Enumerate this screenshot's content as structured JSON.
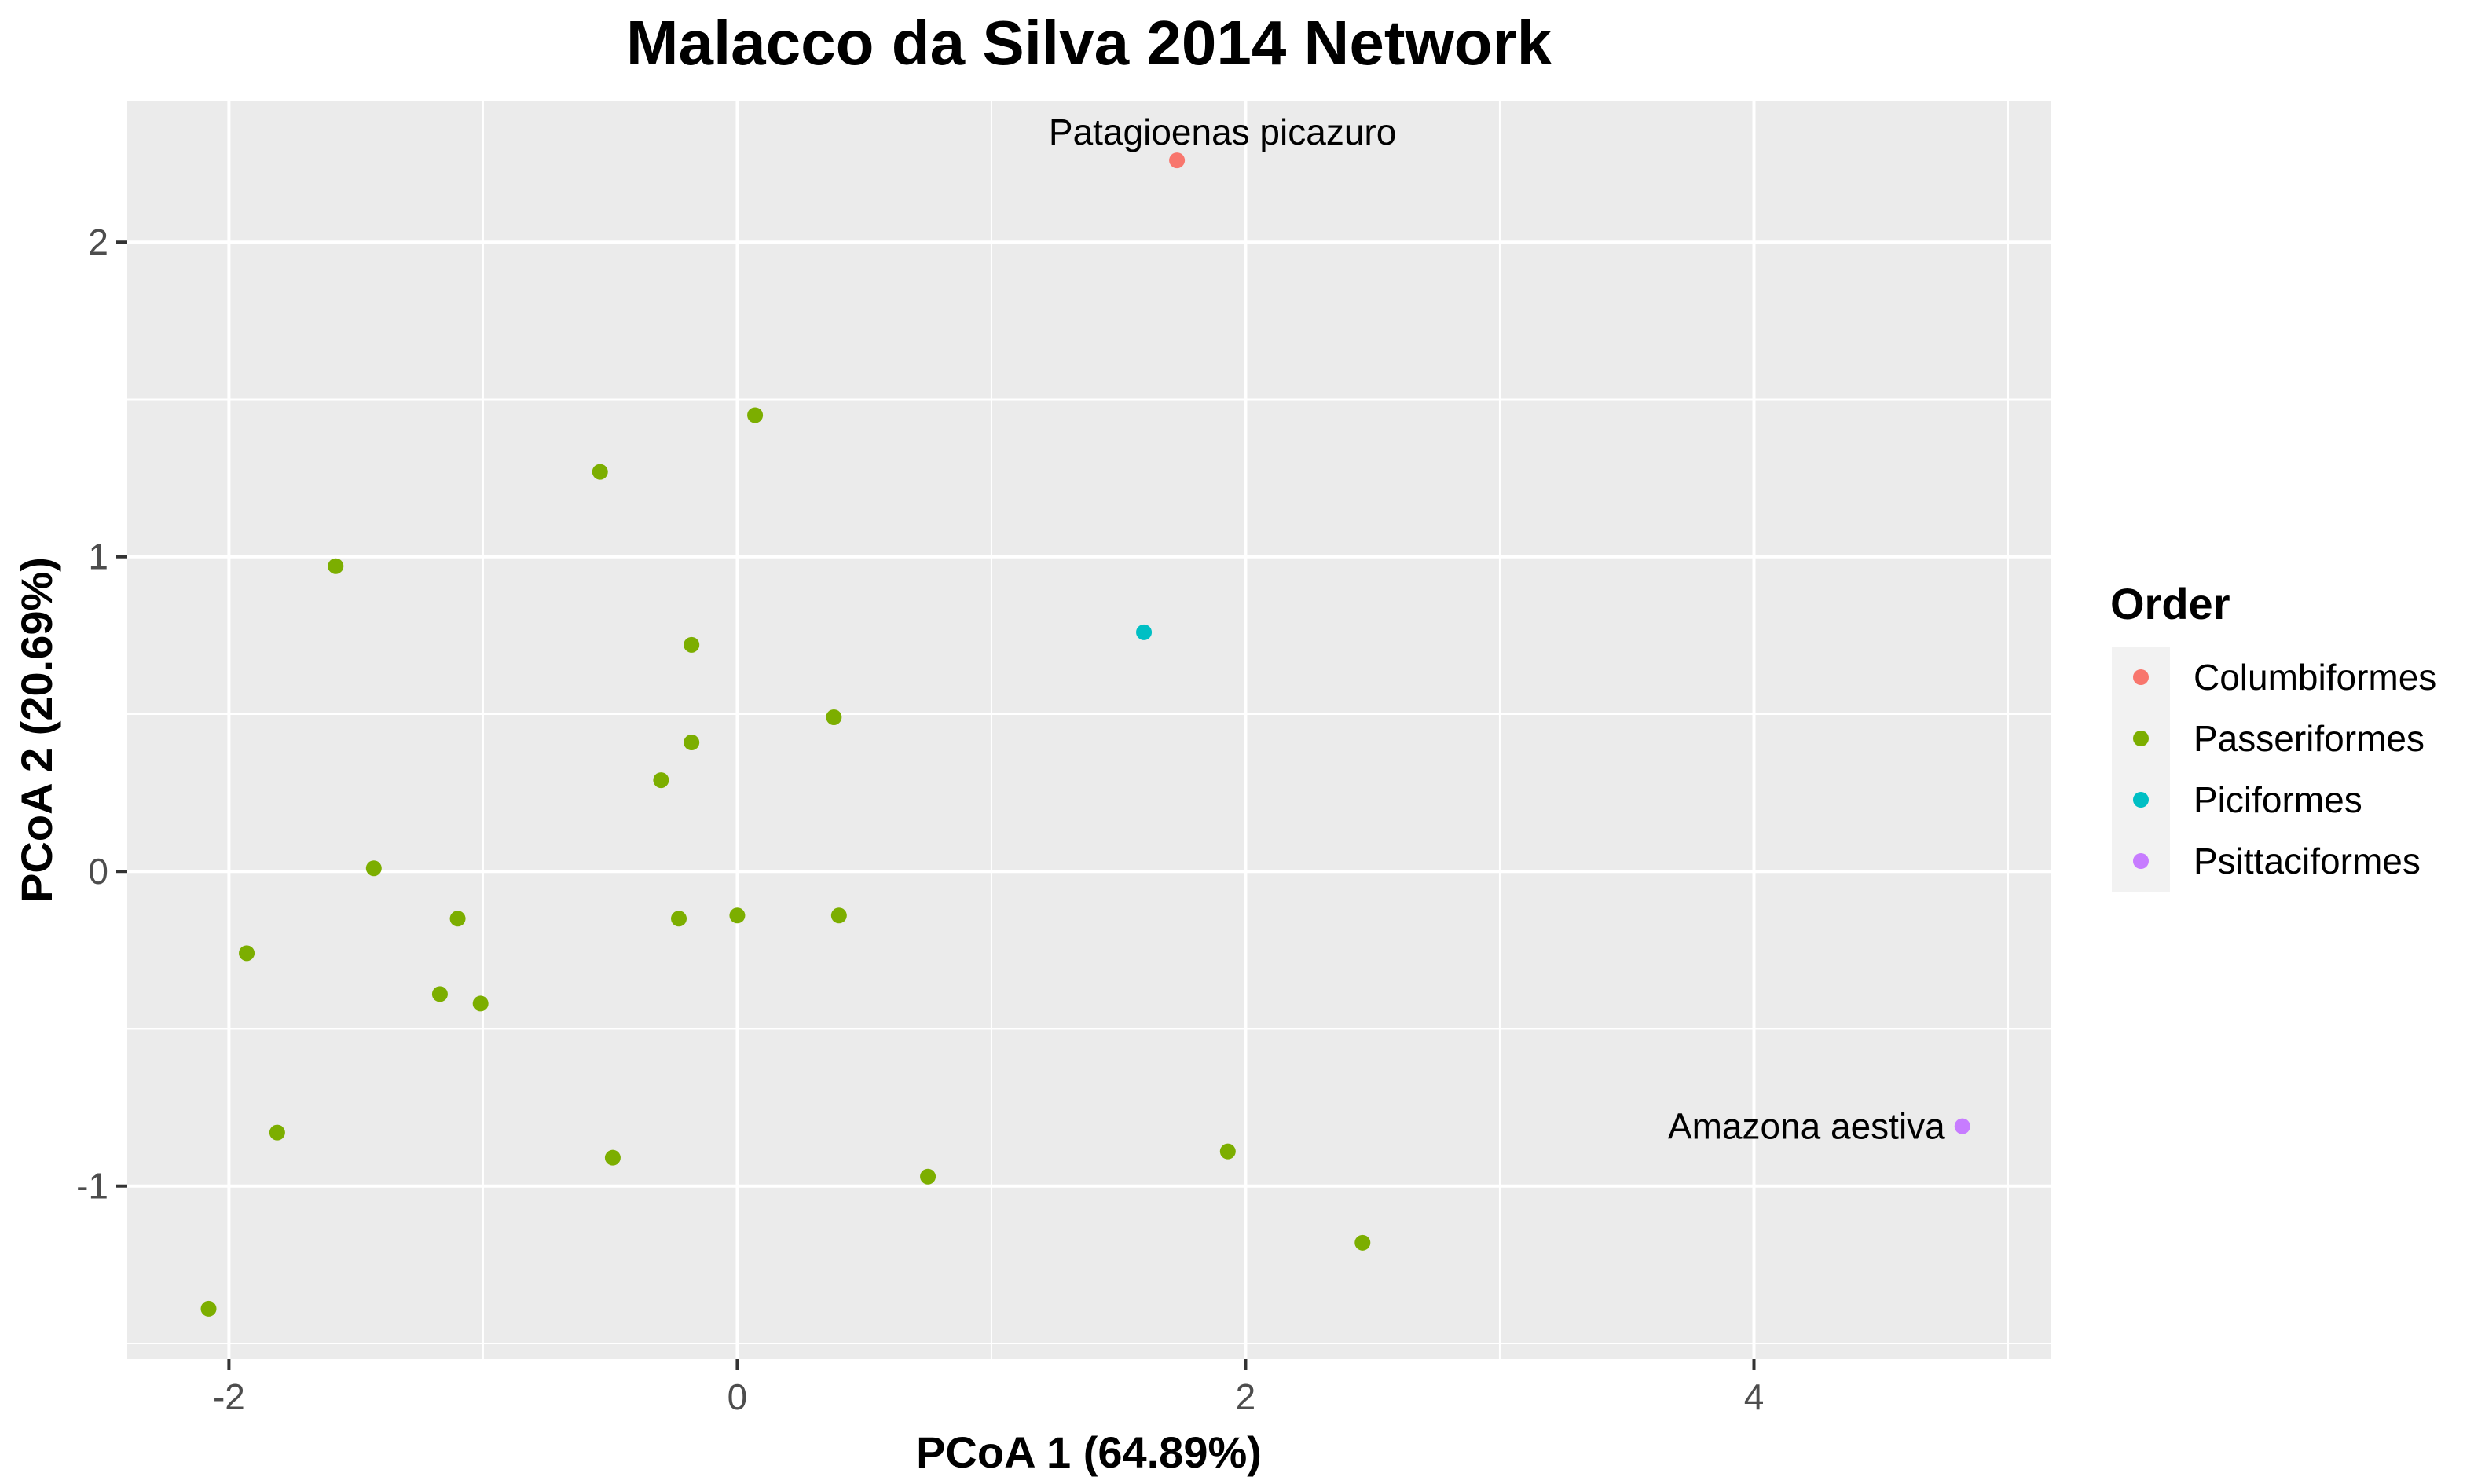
{
  "chart_data": {
    "type": "scatter",
    "title": "Malacco da Silva 2014 Network",
    "xlabel": "PCoA 1 (64.89%)",
    "ylabel": "PCoA 2 (20.69%)",
    "xlim": [
      -2.4,
      5.17
    ],
    "ylim": [
      -1.55,
      2.45
    ],
    "x_ticks": [
      -2,
      0,
      2,
      4
    ],
    "y_ticks": [
      -1,
      0,
      1,
      2
    ],
    "grid": true,
    "legend": {
      "title": "Order",
      "position": "right"
    },
    "series": [
      {
        "name": "Columbiformes",
        "color": "#F8766D",
        "points": [
          {
            "x": 1.73,
            "y": 2.26,
            "label": "Patagioenas picazuro"
          }
        ]
      },
      {
        "name": "Passeriformes",
        "color": "#7CAE00",
        "points": [
          {
            "x": 0.07,
            "y": 1.45
          },
          {
            "x": -0.54,
            "y": 1.27
          },
          {
            "x": -1.58,
            "y": 0.97
          },
          {
            "x": -0.18,
            "y": 0.72
          },
          {
            "x": 0.38,
            "y": 0.49
          },
          {
            "x": -0.18,
            "y": 0.41
          },
          {
            "x": -0.3,
            "y": 0.29
          },
          {
            "x": -1.43,
            "y": 0.01
          },
          {
            "x": -1.1,
            "y": -0.15
          },
          {
            "x": -0.23,
            "y": -0.15
          },
          {
            "x": 0.0,
            "y": -0.14
          },
          {
            "x": 0.4,
            "y": -0.14
          },
          {
            "x": -1.93,
            "y": -0.26
          },
          {
            "x": -1.17,
            "y": -0.39
          },
          {
            "x": -1.01,
            "y": -0.42
          },
          {
            "x": -1.81,
            "y": -0.83
          },
          {
            "x": -0.49,
            "y": -0.91
          },
          {
            "x": 0.75,
            "y": -0.97
          },
          {
            "x": 1.93,
            "y": -0.89
          },
          {
            "x": 2.46,
            "y": -1.18
          },
          {
            "x": -2.08,
            "y": -1.39
          }
        ]
      },
      {
        "name": "Piciformes",
        "color": "#00BFC4",
        "points": [
          {
            "x": 1.6,
            "y": 0.76
          }
        ]
      },
      {
        "name": "Psittaciformes",
        "color": "#C77CFF",
        "points": [
          {
            "x": 4.82,
            "y": -0.81,
            "label": "Amazona aestiva"
          }
        ]
      }
    ]
  }
}
